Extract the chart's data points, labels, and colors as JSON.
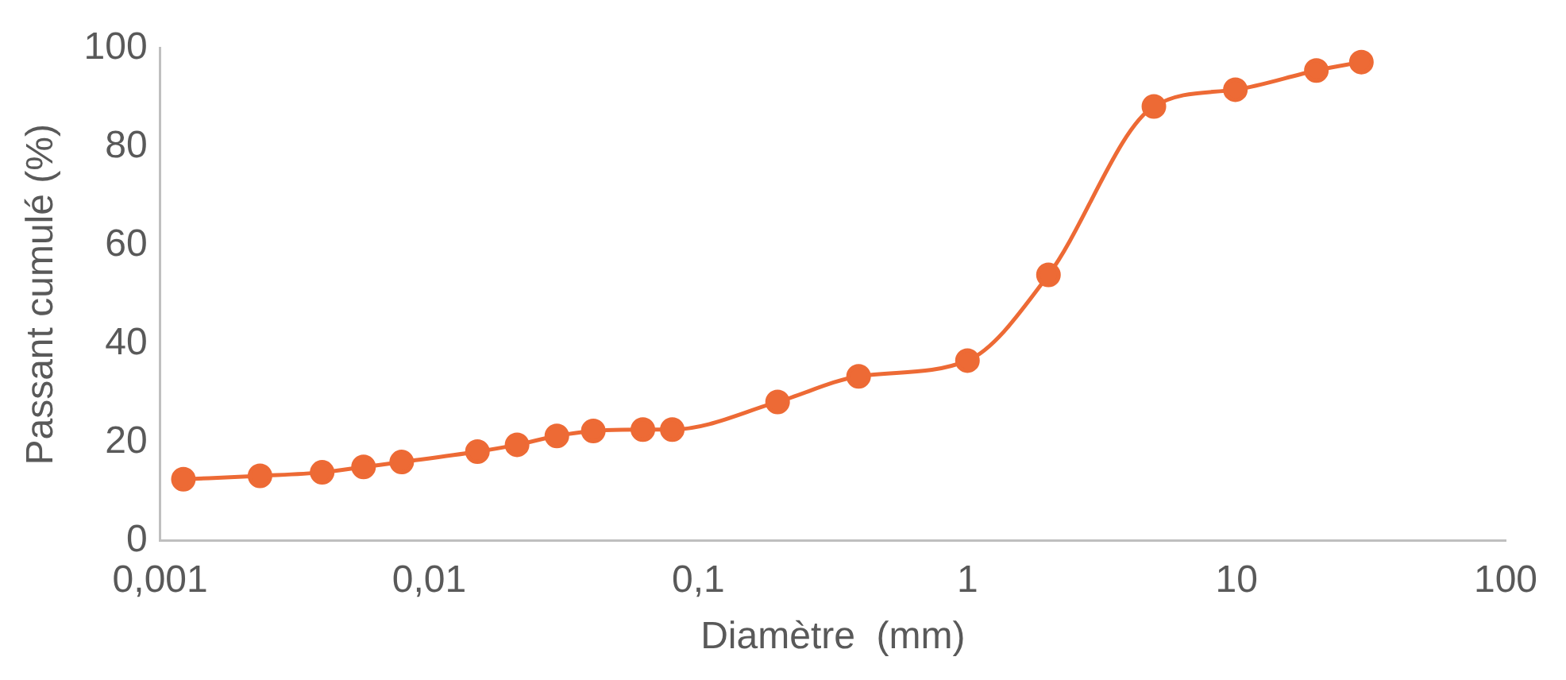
{
  "chart_data": {
    "type": "line",
    "xlabel": "Diamètre  (mm)",
    "ylabel": "Passant cumulé (%)",
    "x": [
      0.00122,
      0.00235,
      0.004,
      0.0057,
      0.0079,
      0.0151,
      0.0212,
      0.0298,
      0.0407,
      0.0622,
      0.08,
      0.197,
      0.394,
      1,
      2,
      4.93,
      9.9,
      19.8,
      29.1
    ],
    "series": [
      {
        "color": "#ed6a35",
        "values": [
          12.5,
          13.2,
          13.9,
          15,
          16,
          18.1,
          19.5,
          21.3,
          22.3,
          22.6,
          22.6,
          28.2,
          33.4,
          36.6,
          54,
          88.2,
          91.6,
          95.5,
          97.2
        ]
      }
    ],
    "log": "x",
    "xlim": [
      0.001,
      100
    ],
    "xticks": [
      {
        "value": 0.001,
        "label": "0,001"
      },
      {
        "value": 0.01,
        "label": "0,01"
      },
      {
        "value": 0.1,
        "label": "0,1"
      },
      1,
      10,
      100
    ],
    "ylim": [
      0,
      100
    ],
    "yticks": [
      0,
      20,
      40,
      60,
      80,
      100
    ],
    "grid": false,
    "legend": false,
    "marker": "circle",
    "line_style": "solid"
  }
}
